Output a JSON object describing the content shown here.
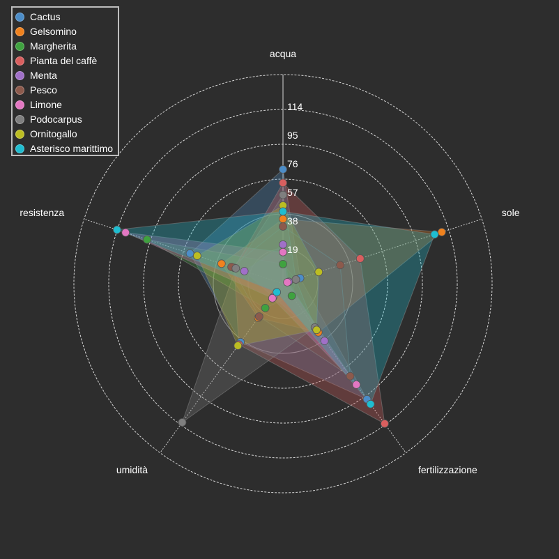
{
  "chart_data": {
    "type": "radar",
    "axes": [
      "acqua",
      "sole",
      "fertilizzazione",
      "umidità",
      "resistenza"
    ],
    "rlim": [
      0,
      114
    ],
    "radial_ticks": [
      19,
      38,
      57,
      76,
      95,
      114
    ],
    "grid": true,
    "legend_position": "top-left",
    "series": [
      {
        "name": "Cactus",
        "color": "#4c8dc8",
        "values": [
          76,
          12,
          95,
          48,
          65
        ]
      },
      {
        "name": "Gelsomino",
        "color": "#f0821e",
        "values": [
          43,
          111,
          40,
          28,
          43
        ]
      },
      {
        "name": "Margherita",
        "color": "#3fa23f",
        "values": [
          13,
          9,
          10,
          20,
          95
        ]
      },
      {
        "name": "Pianta del caffè",
        "color": "#d95f5f",
        "values": [
          67,
          54,
          115,
          50,
          34
        ]
      },
      {
        "name": "Menta",
        "color": "#a070c8",
        "values": [
          26,
          4,
          47,
          11,
          27
        ]
      },
      {
        "name": "Pesco",
        "color": "#8c5a4c",
        "values": [
          38,
          40,
          76,
          27,
          36
        ]
      },
      {
        "name": "Limone",
        "color": "#e377c2",
        "values": [
          21,
          3,
          83,
          12,
          110
        ]
      },
      {
        "name": "Podocarpus",
        "color": "#7f7f7f",
        "values": [
          59,
          9,
          36,
          114,
          33
        ]
      },
      {
        "name": "Ornitogallo",
        "color": "#bcbd22",
        "values": [
          52,
          25,
          38,
          51,
          60
        ]
      },
      {
        "name": "Asterisco marittimo",
        "color": "#1fbdd0",
        "values": [
          48,
          106,
          99,
          7,
          116
        ]
      }
    ]
  }
}
